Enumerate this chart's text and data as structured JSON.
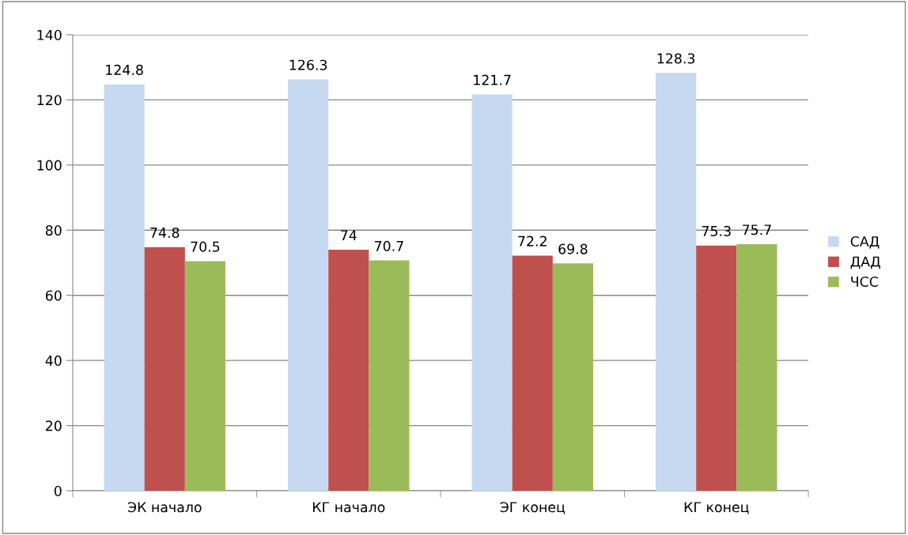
{
  "chart_data": {
    "type": "bar",
    "categories": [
      "ЭК начало",
      "КГ начало",
      "ЭГ конец",
      "КГ конец"
    ],
    "series": [
      {
        "name": "САД",
        "color": "#c6d9f1",
        "values": [
          124.8,
          126.3,
          121.7,
          128.3
        ]
      },
      {
        "name": "ДАД",
        "color": "#c0504d",
        "values": [
          74.8,
          74,
          72.2,
          75.3
        ]
      },
      {
        "name": "ЧСС",
        "color": "#9bbb59",
        "values": [
          70.5,
          70.7,
          69.8,
          75.7
        ]
      }
    ],
    "ylim": [
      0,
      140
    ],
    "yticks": [
      0,
      20,
      40,
      60,
      80,
      100,
      120,
      140
    ],
    "grid": "y",
    "legend": "right",
    "data_labels": true
  }
}
